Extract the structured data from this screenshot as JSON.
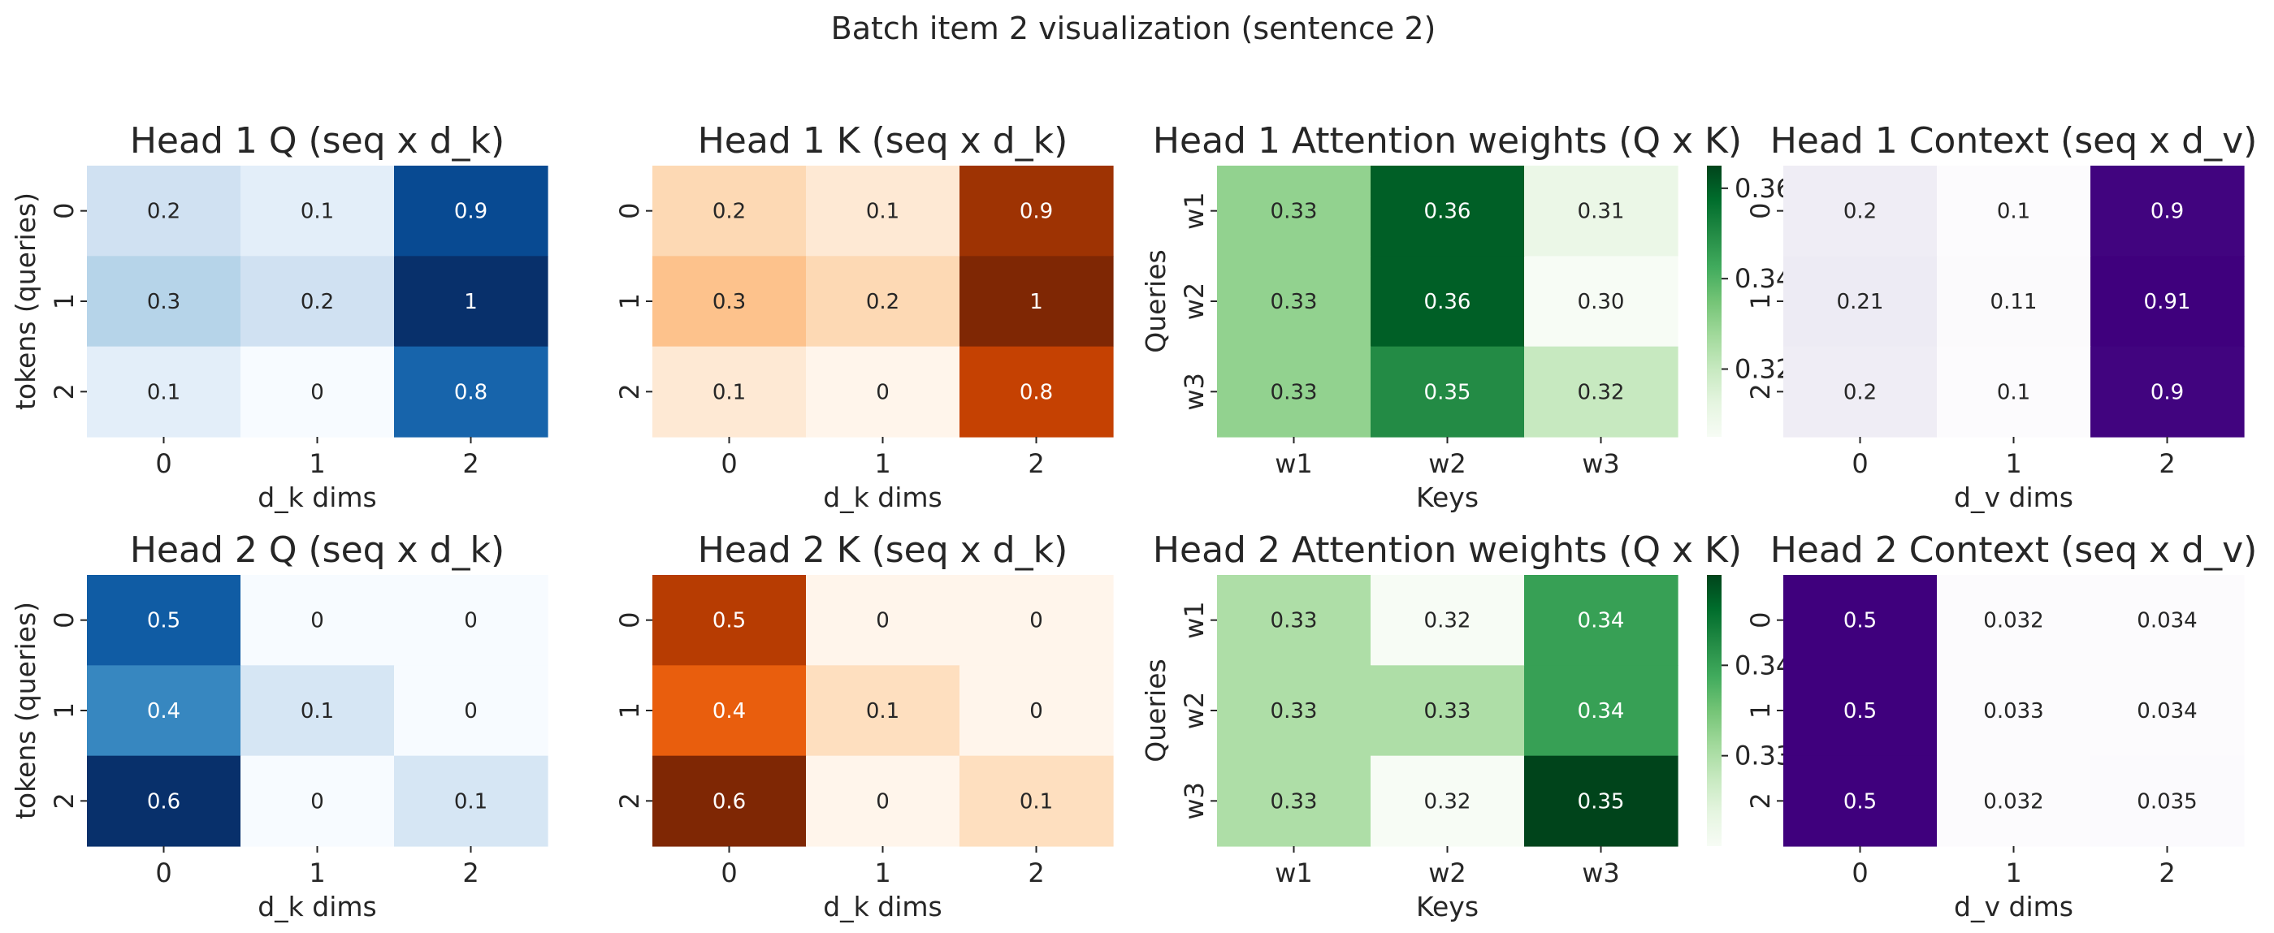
{
  "suptitle": "Batch item 2 visualization (sentence 2)",
  "colors": {
    "Blues": [
      "#f7fbff",
      "#deebf7",
      "#c6dbef",
      "#9ecae1",
      "#6baed6",
      "#4292c6",
      "#2171b5",
      "#08519c",
      "#08306b"
    ],
    "Oranges": [
      "#fff5eb",
      "#fee6ce",
      "#fdd0a2",
      "#fdae6b",
      "#fd8d3c",
      "#f16913",
      "#d94801",
      "#a63603",
      "#7f2704"
    ],
    "Greens": [
      "#f7fcf5",
      "#e5f5e0",
      "#c7e9c0",
      "#a1d99b",
      "#74c476",
      "#41ab5d",
      "#238b45",
      "#006d2c",
      "#00441b"
    ],
    "Purples": [
      "#fcfbfd",
      "#efedf5",
      "#dadaeb",
      "#bcbddc",
      "#9e9ac8",
      "#807dba",
      "#6a51a3",
      "#54278f",
      "#3f007d"
    ]
  },
  "chart_data": [
    {
      "type": "heatmap",
      "title": "Head 1 Q (seq x d_k)",
      "xlabel": "d_k dims",
      "ylabel": "tokens (queries)",
      "xticks": [
        "0",
        "1",
        "2"
      ],
      "yticks": [
        "0",
        "1",
        "2"
      ],
      "cmap": "Blues",
      "values": [
        [
          0.2,
          0.1,
          0.9
        ],
        [
          0.3,
          0.2,
          1.0
        ],
        [
          0.1,
          0.0,
          0.8
        ]
      ],
      "labels": [
        [
          "0.2",
          "0.1",
          "0.9"
        ],
        [
          "0.3",
          "0.2",
          "1"
        ],
        [
          "0.1",
          "0",
          "0.8"
        ]
      ],
      "colorbar": false
    },
    {
      "type": "heatmap",
      "title": "Head 1 K (seq x d_k)",
      "xlabel": "d_k dims",
      "ylabel": "",
      "xticks": [
        "0",
        "1",
        "2"
      ],
      "yticks": [
        "0",
        "1",
        "2"
      ],
      "cmap": "Oranges",
      "values": [
        [
          0.2,
          0.1,
          0.9
        ],
        [
          0.3,
          0.2,
          1.0
        ],
        [
          0.1,
          0.0,
          0.8
        ]
      ],
      "labels": [
        [
          "0.2",
          "0.1",
          "0.9"
        ],
        [
          "0.3",
          "0.2",
          "1"
        ],
        [
          "0.1",
          "0",
          "0.8"
        ]
      ],
      "colorbar": false
    },
    {
      "type": "heatmap",
      "title": "Head 1 Attention weights (Q x K)",
      "xlabel": "Keys",
      "ylabel": "Queries",
      "xticks": [
        "w1",
        "w2",
        "w3"
      ],
      "yticks": [
        "w1",
        "w2",
        "w3"
      ],
      "cmap": "Greens",
      "values": [
        [
          0.33,
          0.36,
          0.31
        ],
        [
          0.33,
          0.36,
          0.3
        ],
        [
          0.33,
          0.35,
          0.32
        ]
      ],
      "labels": [
        [
          "0.33",
          "0.36",
          "0.31"
        ],
        [
          "0.33",
          "0.36",
          "0.30"
        ],
        [
          "0.33",
          "0.35",
          "0.32"
        ]
      ],
      "colorbar": true,
      "vmin": 0.305,
      "vmax": 0.365,
      "colorbar_ticks": [
        "0.32",
        "0.34",
        "0.36"
      ]
    },
    {
      "type": "heatmap",
      "title": "Head 1 Context (seq x d_v)",
      "xlabel": "d_v dims",
      "ylabel": "",
      "xticks": [
        "0",
        "1",
        "2"
      ],
      "yticks": [
        "0",
        "1",
        "2"
      ],
      "cmap": "Purples",
      "values": [
        [
          0.2,
          0.1,
          0.9
        ],
        [
          0.21,
          0.11,
          0.91
        ],
        [
          0.2,
          0.1,
          0.9
        ]
      ],
      "labels": [
        [
          "0.2",
          "0.1",
          "0.9"
        ],
        [
          "0.21",
          "0.11",
          "0.91"
        ],
        [
          "0.2",
          "0.1",
          "0.9"
        ]
      ],
      "colorbar": false
    },
    {
      "type": "heatmap",
      "title": "Head 2 Q (seq x d_k)",
      "xlabel": "d_k dims",
      "ylabel": "tokens (queries)",
      "xticks": [
        "0",
        "1",
        "2"
      ],
      "yticks": [
        "0",
        "1",
        "2"
      ],
      "cmap": "Blues",
      "values": [
        [
          0.5,
          0.0,
          0.0
        ],
        [
          0.4,
          0.1,
          0.0
        ],
        [
          0.6,
          0.0,
          0.1
        ]
      ],
      "labels": [
        [
          "0.5",
          "0",
          "0"
        ],
        [
          "0.4",
          "0.1",
          "0"
        ],
        [
          "0.6",
          "0",
          "0.1"
        ]
      ],
      "colorbar": false
    },
    {
      "type": "heatmap",
      "title": "Head 2 K (seq x d_k)",
      "xlabel": "d_k dims",
      "ylabel": "",
      "xticks": [
        "0",
        "1",
        "2"
      ],
      "yticks": [
        "0",
        "1",
        "2"
      ],
      "cmap": "Oranges",
      "values": [
        [
          0.5,
          0.0,
          0.0
        ],
        [
          0.4,
          0.1,
          0.0
        ],
        [
          0.6,
          0.0,
          0.1
        ]
      ],
      "labels": [
        [
          "0.5",
          "0",
          "0"
        ],
        [
          "0.4",
          "0.1",
          "0"
        ],
        [
          "0.6",
          "0",
          "0.1"
        ]
      ],
      "colorbar": false
    },
    {
      "type": "heatmap",
      "title": "Head 2 Attention weights (Q x K)",
      "xlabel": "Keys",
      "ylabel": "Queries",
      "xticks": [
        "w1",
        "w2",
        "w3"
      ],
      "yticks": [
        "w1",
        "w2",
        "w3"
      ],
      "cmap": "Greens",
      "values": [
        [
          0.33,
          0.32,
          0.34
        ],
        [
          0.33,
          0.33,
          0.34
        ],
        [
          0.33,
          0.32,
          0.35
        ]
      ],
      "labels": [
        [
          "0.33",
          "0.32",
          "0.34"
        ],
        [
          "0.33",
          "0.33",
          "0.34"
        ],
        [
          "0.33",
          "0.32",
          "0.35"
        ]
      ],
      "colorbar": true,
      "vmin": 0.32,
      "vmax": 0.35,
      "colorbar_ticks": [
        "0.33",
        "0.34"
      ]
    },
    {
      "type": "heatmap",
      "title": "Head 2 Context (seq x d_v)",
      "xlabel": "d_v dims",
      "ylabel": "",
      "xticks": [
        "0",
        "1",
        "2"
      ],
      "yticks": [
        "0",
        "1",
        "2"
      ],
      "cmap": "Purples",
      "values": [
        [
          0.5,
          0.032,
          0.034
        ],
        [
          0.5,
          0.033,
          0.034
        ],
        [
          0.5,
          0.032,
          0.035
        ]
      ],
      "labels": [
        [
          "0.5",
          "0.032",
          "0.034"
        ],
        [
          "0.5",
          "0.033",
          "0.034"
        ],
        [
          "0.5",
          "0.032",
          "0.035"
        ]
      ],
      "colorbar": false
    }
  ]
}
